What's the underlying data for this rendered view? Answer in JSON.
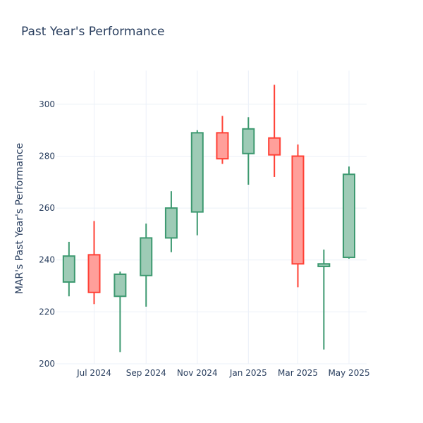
{
  "chart_data": {
    "type": "candlestick",
    "title": "Past Year's Performance",
    "xlabel": "",
    "ylabel": "MAR's Past Year's Performance",
    "ylim": [
      200,
      313
    ],
    "yticks": [
      200,
      220,
      240,
      260,
      280,
      300
    ],
    "xlim": [
      "2024-05-17",
      "2025-05-22"
    ],
    "xticks": [
      {
        "date": "2024-07-01",
        "label": "Jul 2024"
      },
      {
        "date": "2024-09-01",
        "label": "Sep 2024"
      },
      {
        "date": "2024-11-01",
        "label": "Nov 2024"
      },
      {
        "date": "2025-01-01",
        "label": "Jan 2025"
      },
      {
        "date": "2025-03-01",
        "label": "Mar 2025"
      },
      {
        "date": "2025-05-01",
        "label": "May 2025"
      }
    ],
    "grid": true,
    "colors": {
      "increasing": "#3d9970",
      "increasing_fill": "#9ecbb6",
      "decreasing": "#ff4136",
      "decreasing_fill": "#ff9f9a"
    },
    "candles": [
      {
        "date": "2024-06-01",
        "open": 231.5,
        "high": 247,
        "low": 226,
        "close": 241.5
      },
      {
        "date": "2024-07-01",
        "open": 242,
        "high": 255,
        "low": 223,
        "close": 227.5
      },
      {
        "date": "2024-08-01",
        "open": 226,
        "high": 235.5,
        "low": 204.5,
        "close": 234.5
      },
      {
        "date": "2024-09-01",
        "open": 234,
        "high": 254,
        "low": 222,
        "close": 248.5
      },
      {
        "date": "2024-10-01",
        "open": 248.5,
        "high": 266.5,
        "low": 243,
        "close": 260
      },
      {
        "date": "2024-11-01",
        "open": 258.5,
        "high": 290,
        "low": 249.5,
        "close": 289
      },
      {
        "date": "2024-12-01",
        "open": 289,
        "high": 295.5,
        "low": 277,
        "close": 279
      },
      {
        "date": "2025-01-01",
        "open": 281,
        "high": 295,
        "low": 269,
        "close": 290.5
      },
      {
        "date": "2025-02-01",
        "open": 287,
        "high": 307.5,
        "low": 272,
        "close": 280.5
      },
      {
        "date": "2025-03-01",
        "open": 280,
        "high": 284.5,
        "low": 229.5,
        "close": 238.5
      },
      {
        "date": "2025-04-01",
        "open": 237.5,
        "high": 244,
        "low": 205.5,
        "close": 238.5
      },
      {
        "date": "2025-05-01",
        "open": 241,
        "high": 276,
        "low": 240.5,
        "close": 273
      }
    ]
  }
}
